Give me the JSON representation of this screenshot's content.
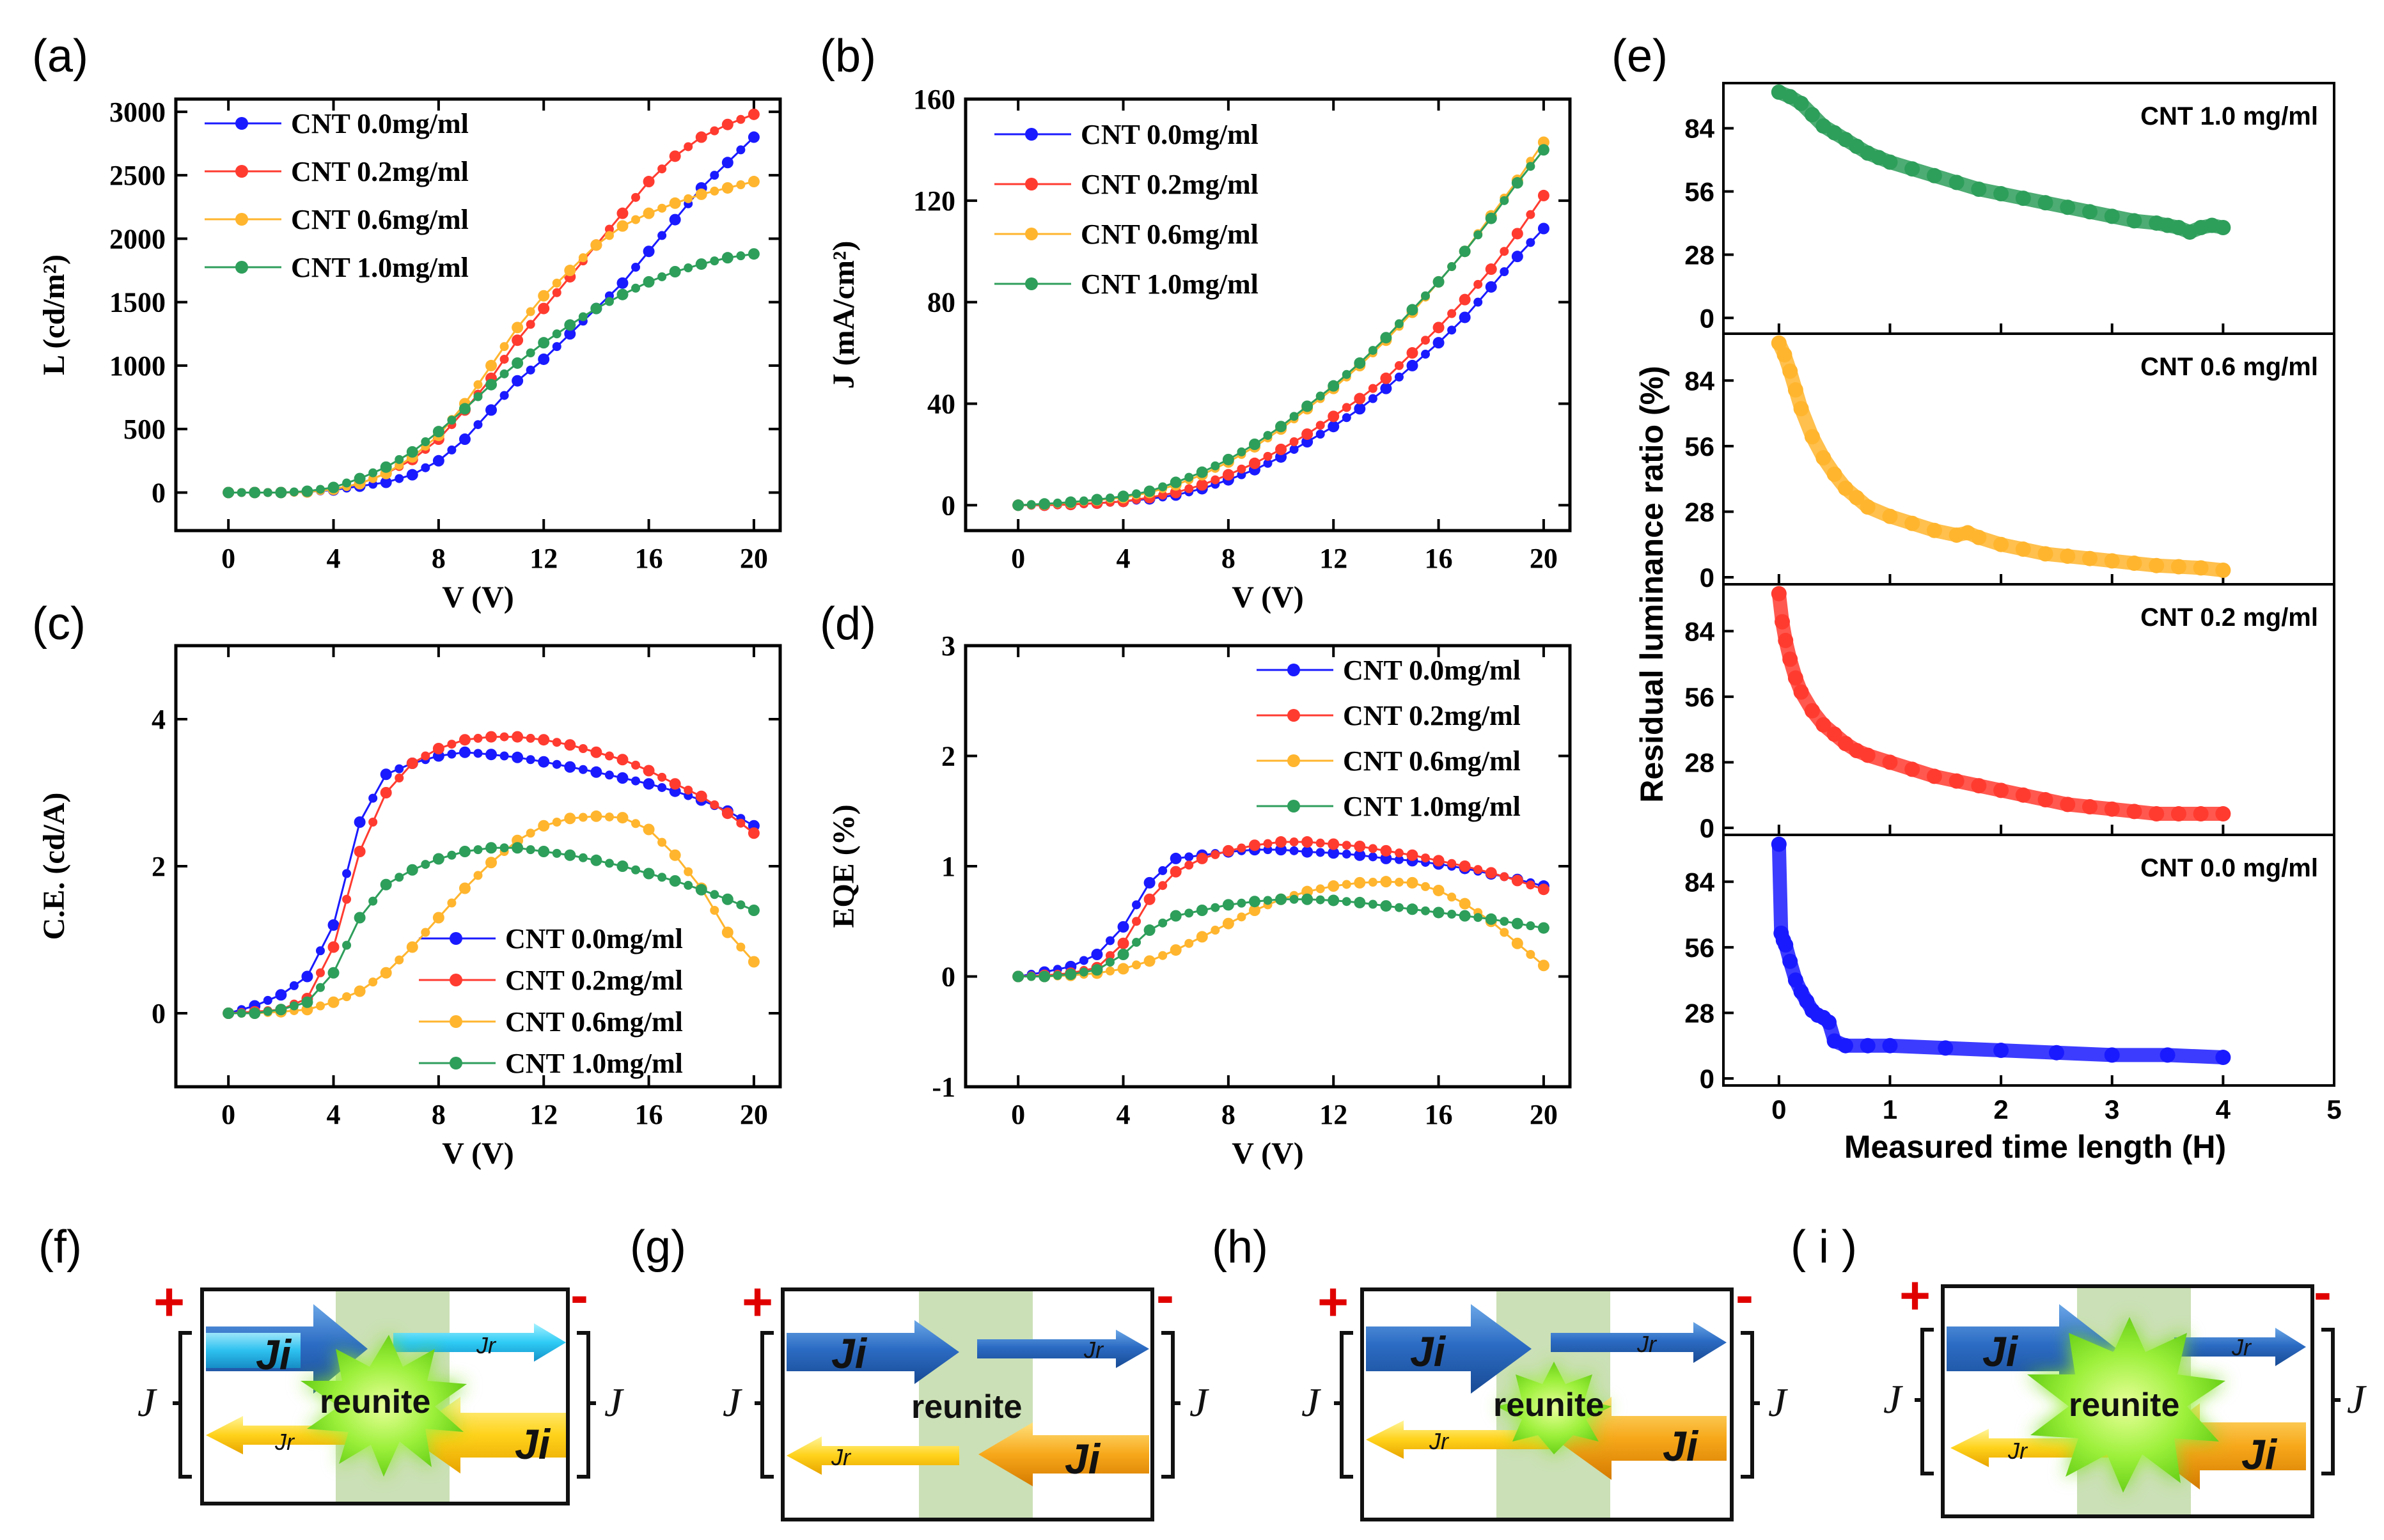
{
  "figure_labels": {
    "a": "(a)",
    "b": "(b)",
    "c": "(c)",
    "d": "(d)",
    "e": "(e)",
    "f": "(f)",
    "g": "(g)",
    "h": "(h)",
    "i": "( i )"
  },
  "colors": {
    "cnt00": "#1a1aff",
    "cnt02": "#ff3b30",
    "cnt06": "#ffb52e",
    "cnt10": "#2e9e5b"
  },
  "chart_data": [
    {
      "id": "a",
      "type": "line",
      "xlabel": "V (V)",
      "ylabel": "L (cd/m²)",
      "xlim": [
        -2,
        21
      ],
      "ylim": [
        -300,
        3100
      ],
      "xticks": [
        0,
        4,
        8,
        12,
        16,
        20
      ],
      "yticks": [
        0,
        500,
        1000,
        1500,
        2000,
        2500,
        3000
      ],
      "legend": "top-left",
      "x": [
        0,
        1,
        2,
        3,
        4,
        5,
        6,
        7,
        8,
        9,
        10,
        11,
        12,
        13,
        14,
        15,
        16,
        17,
        18,
        19,
        20
      ],
      "series": [
        {
          "name": "CNT 0.0mg/ml",
          "color": "#1a1aff",
          "values": [
            0,
            0,
            0,
            5,
            20,
            50,
            80,
            140,
            250,
            420,
            650,
            880,
            1050,
            1250,
            1450,
            1650,
            1900,
            2150,
            2400,
            2600,
            2800
          ]
        },
        {
          "name": "CNT 0.2mg/ml",
          "color": "#ff3b30",
          "values": [
            0,
            0,
            0,
            5,
            25,
            70,
            150,
            260,
            420,
            650,
            900,
            1200,
            1450,
            1700,
            1950,
            2200,
            2450,
            2650,
            2800,
            2900,
            2980
          ]
        },
        {
          "name": "CNT 0.6mg/ml",
          "color": "#ffb52e",
          "values": [
            0,
            0,
            0,
            5,
            25,
            70,
            150,
            280,
            450,
            700,
            1000,
            1300,
            1550,
            1750,
            1950,
            2100,
            2200,
            2280,
            2350,
            2400,
            2450
          ]
        },
        {
          "name": "CNT 1.0mg/ml",
          "color": "#2e9e5b",
          "values": [
            0,
            0,
            0,
            10,
            40,
            110,
            200,
            320,
            480,
            660,
            850,
            1020,
            1180,
            1320,
            1450,
            1560,
            1660,
            1740,
            1800,
            1850,
            1880
          ]
        }
      ]
    },
    {
      "id": "b",
      "type": "line",
      "xlabel": "V (V)",
      "ylabel": "J (mA/cm²)",
      "xlim": [
        -2,
        21
      ],
      "ylim": [
        -10,
        160
      ],
      "xticks": [
        0,
        4,
        8,
        12,
        16,
        20
      ],
      "yticks": [
        0,
        40,
        80,
        120,
        160
      ],
      "legend": "top-left",
      "x": [
        0,
        1,
        2,
        3,
        4,
        5,
        6,
        7,
        8,
        9,
        10,
        11,
        12,
        13,
        14,
        15,
        16,
        17,
        18,
        19,
        20
      ],
      "series": [
        {
          "name": "CNT 0.0mg/ml",
          "color": "#1a1aff",
          "values": [
            0,
            0,
            0.3,
            0.8,
            1.5,
            2.5,
            4,
            6.5,
            10,
            14,
            19,
            25,
            31,
            38,
            46,
            55,
            64,
            74,
            86,
            98,
            109
          ]
        },
        {
          "name": "CNT 0.2mg/ml",
          "color": "#ff3b30",
          "values": [
            0,
            0,
            0.3,
            0.8,
            1.5,
            3,
            5,
            8,
            12,
            16.5,
            22,
            28,
            35,
            42,
            50,
            60,
            70,
            81,
            93,
            107,
            122
          ]
        },
        {
          "name": "CNT 0.6mg/ml",
          "color": "#ffb52e",
          "values": [
            0,
            0.4,
            1,
            2,
            3,
            5,
            8,
            12,
            17,
            23,
            30,
            38,
            46,
            55,
            65,
            76,
            88,
            100,
            114,
            128,
            143
          ]
        },
        {
          "name": "CNT 1.0mg/ml",
          "color": "#2e9e5b",
          "values": [
            0,
            0.5,
            1.2,
            2.2,
            3.5,
            5.5,
            9,
            13,
            18,
            24,
            31,
            39,
            47,
            56,
            66,
            77,
            88,
            100,
            113,
            127,
            140
          ]
        }
      ]
    },
    {
      "id": "c",
      "type": "line",
      "xlabel": "V (V)",
      "ylabel": "C.E. (cd/A)",
      "xlim": [
        -2,
        21
      ],
      "ylim": [
        -1,
        5
      ],
      "xticks": [
        0,
        4,
        8,
        12,
        16,
        20
      ],
      "yticks": [
        0,
        2,
        4
      ],
      "legend": "bottom-right",
      "x": [
        0,
        1,
        2,
        3,
        4,
        5,
        6,
        7,
        8,
        9,
        10,
        11,
        12,
        13,
        14,
        15,
        16,
        17,
        18,
        19,
        20
      ],
      "series": [
        {
          "name": "CNT 0.0mg/ml",
          "color": "#1a1aff",
          "values": [
            0,
            0.1,
            0.25,
            0.5,
            1.2,
            2.6,
            3.25,
            3.4,
            3.5,
            3.55,
            3.52,
            3.48,
            3.42,
            3.35,
            3.28,
            3.2,
            3.12,
            3.02,
            2.9,
            2.75,
            2.55
          ]
        },
        {
          "name": "CNT 0.2mg/ml",
          "color": "#ff3b30",
          "values": [
            0,
            0.02,
            0.05,
            0.2,
            0.9,
            2.2,
            3.0,
            3.4,
            3.6,
            3.72,
            3.76,
            3.76,
            3.72,
            3.65,
            3.55,
            3.45,
            3.3,
            3.12,
            2.95,
            2.72,
            2.45
          ]
        },
        {
          "name": "CNT 0.6mg/ml",
          "color": "#ffb52e",
          "values": [
            0,
            0,
            0.02,
            0.05,
            0.15,
            0.3,
            0.55,
            0.9,
            1.3,
            1.7,
            2.05,
            2.35,
            2.55,
            2.65,
            2.68,
            2.66,
            2.5,
            2.15,
            1.7,
            1.1,
            0.7
          ]
        },
        {
          "name": "CNT 1.0mg/ml",
          "color": "#2e9e5b",
          "values": [
            0,
            0,
            0.05,
            0.15,
            0.55,
            1.3,
            1.75,
            1.95,
            2.1,
            2.2,
            2.25,
            2.25,
            2.2,
            2.15,
            2.08,
            2.0,
            1.9,
            1.8,
            1.68,
            1.55,
            1.4
          ]
        }
      ]
    },
    {
      "id": "d",
      "type": "line",
      "xlabel": "V (V)",
      "ylabel": "EQE (%)",
      "xlim": [
        -2,
        21
      ],
      "ylim": [
        -1,
        3
      ],
      "xticks": [
        0,
        4,
        8,
        12,
        16,
        20
      ],
      "yticks": [
        -1,
        0,
        1,
        2,
        3
      ],
      "legend": "top-right",
      "x": [
        0,
        1,
        2,
        3,
        4,
        5,
        6,
        7,
        8,
        9,
        10,
        11,
        12,
        13,
        14,
        15,
        16,
        17,
        18,
        19,
        20
      ],
      "series": [
        {
          "name": "CNT 0.0mg/ml",
          "color": "#1a1aff",
          "values": [
            0,
            0.04,
            0.09,
            0.2,
            0.45,
            0.85,
            1.07,
            1.1,
            1.13,
            1.15,
            1.15,
            1.13,
            1.12,
            1.1,
            1.07,
            1.05,
            1.02,
            0.98,
            0.93,
            0.88,
            0.82
          ]
        },
        {
          "name": "CNT 0.2mg/ml",
          "color": "#ff3b30",
          "values": [
            0,
            0.01,
            0.03,
            0.08,
            0.3,
            0.7,
            0.95,
            1.07,
            1.14,
            1.19,
            1.22,
            1.22,
            1.2,
            1.18,
            1.14,
            1.1,
            1.05,
            1.0,
            0.94,
            0.87,
            0.79
          ]
        },
        {
          "name": "CNT 0.6mg/ml",
          "color": "#ffb52e",
          "values": [
            0,
            0,
            0.01,
            0.03,
            0.07,
            0.14,
            0.24,
            0.36,
            0.48,
            0.6,
            0.7,
            0.77,
            0.82,
            0.85,
            0.86,
            0.85,
            0.78,
            0.66,
            0.5,
            0.3,
            0.1
          ]
        },
        {
          "name": "CNT 1.0mg/ml",
          "color": "#2e9e5b",
          "values": [
            0,
            0,
            0.02,
            0.06,
            0.2,
            0.42,
            0.55,
            0.6,
            0.65,
            0.68,
            0.7,
            0.7,
            0.69,
            0.67,
            0.64,
            0.61,
            0.58,
            0.55,
            0.52,
            0.48,
            0.44
          ]
        }
      ]
    },
    {
      "id": "e",
      "type": "scatter",
      "xlabel": "Measured time length (H)",
      "ylabel": "Residual luminance ratio (%)",
      "xlim": [
        -0.5,
        5
      ],
      "xticks": [
        0,
        1,
        2,
        3,
        4,
        5
      ],
      "yticks": [
        0,
        28,
        56,
        84
      ],
      "subplots": [
        {
          "label": "CNT 1.0 mg/ml",
          "color": "#2e9e5b",
          "ylim": [
            -7,
            104
          ],
          "x": [
            0,
            0.1,
            0.2,
            0.3,
            0.4,
            0.5,
            0.6,
            0.7,
            0.8,
            0.9,
            1.0,
            1.2,
            1.4,
            1.6,
            1.8,
            2.0,
            2.2,
            2.4,
            2.6,
            2.8,
            3.0,
            3.2,
            3.4,
            3.5,
            3.6,
            3.7,
            3.8,
            3.9,
            4.0
          ],
          "values": [
            100,
            98,
            95,
            90,
            85,
            82,
            79,
            76,
            73,
            71,
            69,
            66,
            63,
            60,
            57,
            55,
            53,
            51,
            49,
            47,
            45,
            43,
            42,
            41,
            40,
            38,
            40,
            41,
            40
          ]
        },
        {
          "label": "CNT 0.6 mg/ml",
          "color": "#ffb52e",
          "ylim": [
            -3,
            104
          ],
          "x": [
            0,
            0.05,
            0.1,
            0.15,
            0.2,
            0.3,
            0.4,
            0.5,
            0.6,
            0.7,
            0.8,
            1.0,
            1.2,
            1.4,
            1.6,
            1.7,
            1.8,
            2.0,
            2.2,
            2.4,
            2.6,
            2.8,
            3.0,
            3.2,
            3.4,
            3.6,
            3.8,
            4.0
          ],
          "values": [
            100,
            95,
            88,
            80,
            72,
            60,
            51,
            44,
            38,
            34,
            30,
            26,
            23,
            20,
            18,
            19,
            17,
            14,
            12,
            10,
            9,
            8,
            7,
            6,
            5,
            4.5,
            4,
            3
          ]
        },
        {
          "label": "CNT 0.2 mg/ml",
          "color": "#ff3b30",
          "ylim": [
            -3,
            104
          ],
          "x": [
            0,
            0.03,
            0.06,
            0.1,
            0.15,
            0.2,
            0.3,
            0.4,
            0.5,
            0.6,
            0.7,
            0.8,
            1.0,
            1.2,
            1.4,
            1.6,
            1.8,
            2.0,
            2.2,
            2.4,
            2.6,
            2.8,
            3.0,
            3.2,
            3.4,
            3.6,
            3.8,
            4.0
          ],
          "values": [
            100,
            88,
            80,
            72,
            64,
            58,
            50,
            44,
            40,
            36,
            33,
            31,
            28,
            25,
            22,
            20,
            18,
            16,
            14,
            12,
            10,
            9,
            8,
            7,
            6,
            6,
            6,
            6
          ]
        },
        {
          "label": "CNT 0.0 mg/ml",
          "color": "#1a1aff",
          "ylim": [
            -3,
            104
          ],
          "x": [
            0,
            0.02,
            0.04,
            0.06,
            0.1,
            0.15,
            0.2,
            0.25,
            0.3,
            0.35,
            0.4,
            0.45,
            0.5,
            0.6,
            0.8,
            1.0,
            1.5,
            2.0,
            2.5,
            3.0,
            3.5,
            4.0
          ],
          "values": [
            100,
            62,
            59,
            57,
            50,
            42,
            37,
            33,
            29,
            27,
            26,
            24,
            16,
            14,
            14,
            14,
            13,
            12,
            11,
            10,
            10,
            9
          ]
        }
      ]
    }
  ],
  "diagrams": {
    "j_big": "Ji",
    "j_small": "Jr",
    "reunite": "reunite",
    "plus": "+",
    "minus": "-",
    "j": "J"
  }
}
